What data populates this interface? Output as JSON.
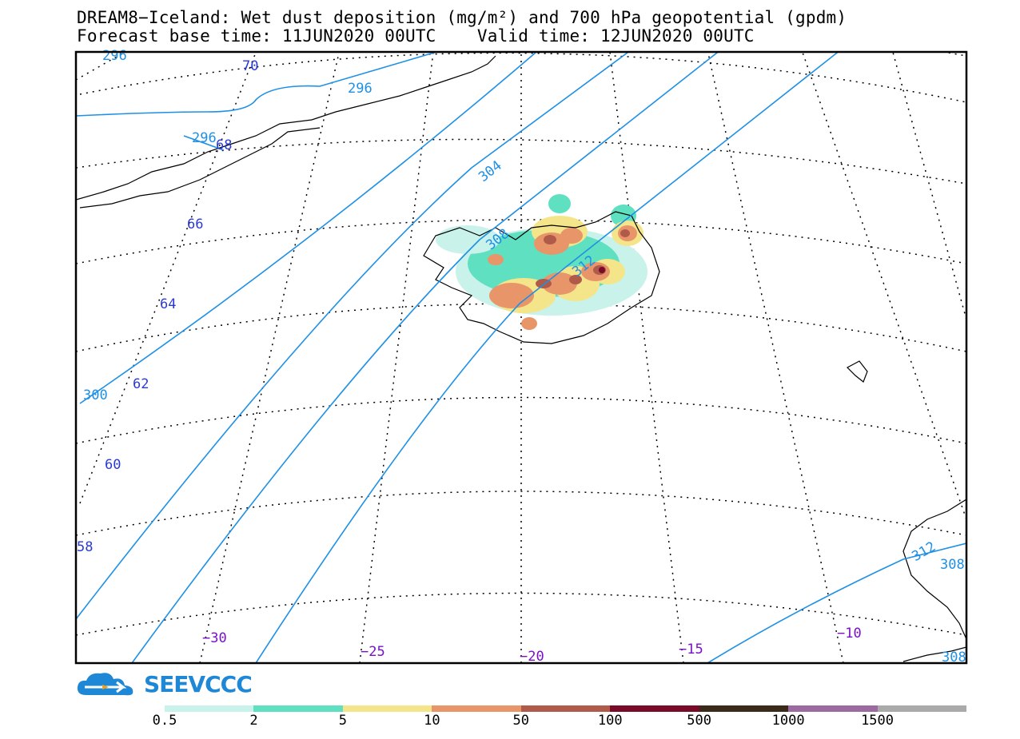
{
  "title_line1": "DREAM8−Iceland: Wet dust deposition (mg/m²) and 700 hPa geopotential (gpdm)",
  "title_line2": "Forecast base time: 11JUN2020 00UTC    Valid time: 12JUN2020 00UTC",
  "logo_text": "SEEVCCC",
  "colorbar": {
    "labels": [
      "0.5",
      "2",
      "5",
      "10",
      "50",
      "100",
      "500",
      "1000",
      "1500"
    ],
    "colors": [
      "#c8f2ea",
      "#5fe0c0",
      "#f5e58a",
      "#e8956a",
      "#b05a4a",
      "#7a0a2a",
      "#3a2a1a",
      "#9a6aa0",
      "#aaaaaa"
    ]
  },
  "lat_labels": [
    "70",
    "68",
    "66",
    "64",
    "62",
    "60",
    "58"
  ],
  "lon_labels": [
    "−30",
    "−25",
    "−20",
    "−15",
    "−10"
  ],
  "contour_labels": [
    "296",
    "296",
    "296",
    "300",
    "304",
    "308",
    "312",
    "312",
    "308",
    "308"
  ]
}
